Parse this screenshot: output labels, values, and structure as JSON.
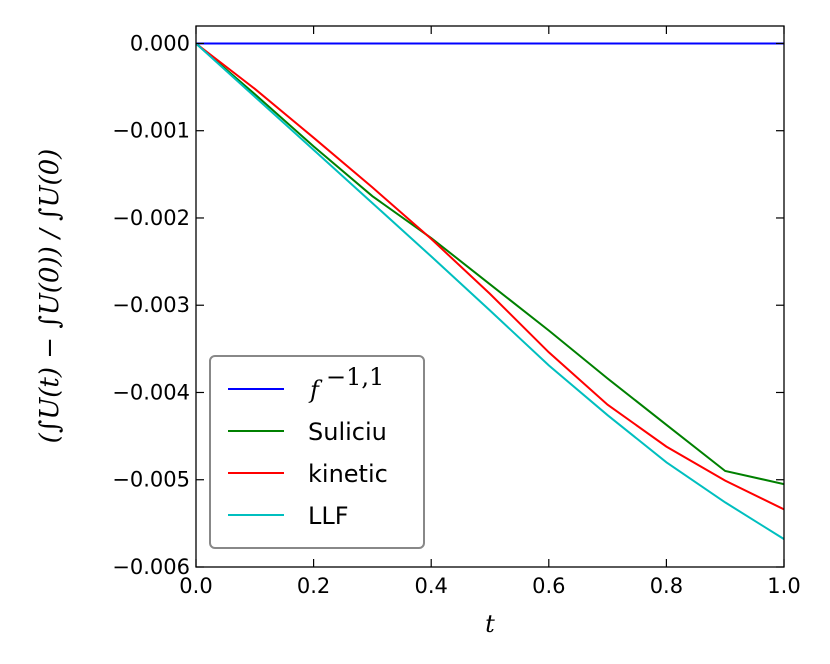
{
  "chart_data": {
    "type": "line",
    "xlabel": "t",
    "ylabel": "(∫U(t) − ∫U(0)) / ∫U(0)",
    "xlim": [
      0.0,
      1.0
    ],
    "ylim": [
      -0.006,
      0.0002
    ],
    "x_ticks": [
      0.0,
      0.2,
      0.4,
      0.6,
      0.8,
      1.0
    ],
    "x_tick_labels": [
      "0.0",
      "0.2",
      "0.4",
      "0.6",
      "0.8",
      "1.0"
    ],
    "y_ticks": [
      0.0,
      -0.001,
      -0.002,
      -0.003,
      -0.004,
      -0.005,
      -0.006
    ],
    "y_tick_labels": [
      "0.000",
      "−0.001",
      "−0.002",
      "−0.003",
      "−0.004",
      "−0.005",
      "−0.006"
    ],
    "grid": false,
    "legend_position": "lower-left",
    "series": [
      {
        "name": "f^{-1,1}",
        "name_base": "f",
        "name_sup": "−1,1",
        "color": "#0000ff",
        "x": [
          0.0,
          1.0
        ],
        "y": [
          0.0,
          0.0
        ]
      },
      {
        "name": "Suliciu",
        "color": "#008000",
        "x": [
          0.0,
          0.1,
          0.2,
          0.3,
          0.4,
          0.5,
          0.6,
          0.7,
          0.8,
          0.9,
          1.0
        ],
        "y": [
          0.0,
          -0.00058,
          -0.00118,
          -0.00175,
          -0.00223,
          -0.00276,
          -0.00329,
          -0.00384,
          -0.00437,
          -0.0049,
          -0.00505
        ]
      },
      {
        "name": "kinetic",
        "color": "#ff0000",
        "x": [
          0.0,
          0.1,
          0.2,
          0.3,
          0.4,
          0.5,
          0.6,
          0.7,
          0.8,
          0.9,
          1.0
        ],
        "y": [
          0.0,
          -0.00052,
          -0.00108,
          -0.00165,
          -0.00224,
          -0.00287,
          -0.00354,
          -0.00414,
          -0.00462,
          -0.00501,
          -0.00534
        ]
      },
      {
        "name": "LLF",
        "color": "#00bfbf",
        "x": [
          0.0,
          0.1,
          0.2,
          0.3,
          0.4,
          0.5,
          0.6,
          0.7,
          0.8,
          0.9,
          1.0
        ],
        "y": [
          0.0,
          -0.00061,
          -0.00122,
          -0.00183,
          -0.00244,
          -0.00306,
          -0.00369,
          -0.00426,
          -0.0048,
          -0.00526,
          -0.00568
        ]
      }
    ]
  }
}
